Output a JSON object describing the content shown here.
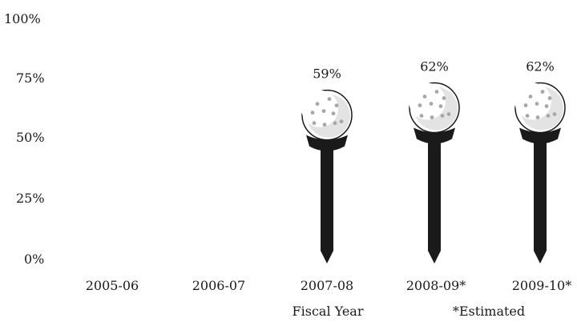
{
  "chart_data": {
    "type": "bar",
    "categories": [
      "2005-06",
      "2006-07",
      "2007-08",
      "2008-09*",
      "2009-10*"
    ],
    "values": [
      null,
      null,
      59,
      62,
      62
    ],
    "value_labels": [
      "",
      "",
      "59%",
      "62%",
      "62%"
    ],
    "yticks": [
      "0%",
      "25%",
      "50%",
      "75%",
      "100%"
    ],
    "ylim": [
      0,
      100
    ],
    "xlabel": "Fiscal Year",
    "note": "*Estimated",
    "grid": false,
    "marker": "golf ball on tee"
  }
}
